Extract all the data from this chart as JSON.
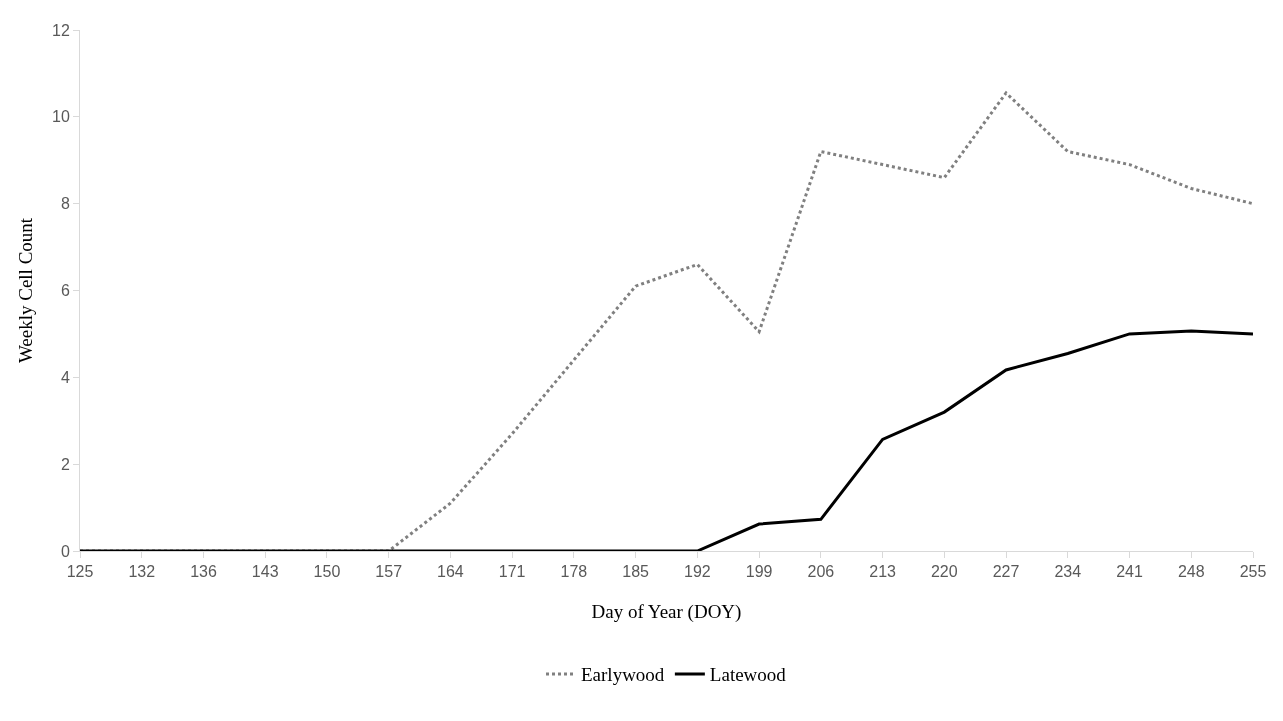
{
  "chart_data": {
    "type": "line",
    "xlabel": "Day of Year (DOY)",
    "ylabel": "Weekly Cell Count",
    "categories": [
      "125",
      "132",
      "136",
      "143",
      "150",
      "157",
      "164",
      "171",
      "178",
      "185",
      "192",
      "199",
      "206",
      "213",
      "220",
      "227",
      "234",
      "241",
      "248",
      "255"
    ],
    "series": [
      {
        "name": "Earlywood",
        "color": "#808080",
        "line_style": "dotted",
        "values": [
          0,
          0,
          0,
          0,
          0,
          0,
          1.1,
          2.7,
          4.4,
          6.1,
          6.6,
          5.05,
          9.2,
          8.9,
          8.6,
          10.55,
          9.2,
          8.9,
          8.35,
          8.0
        ]
      },
      {
        "name": "Latewood",
        "color": "#000000",
        "line_style": "solid",
        "values": [
          0,
          0,
          0,
          0,
          0,
          0,
          0,
          0,
          0,
          0,
          0,
          0.62,
          0.73,
          2.57,
          3.2,
          4.17,
          4.55,
          5.0,
          5.07,
          5.0
        ]
      }
    ],
    "ylim": [
      0,
      12
    ],
    "yticks": [
      0,
      2,
      4,
      6,
      8,
      10,
      12
    ],
    "grid": false,
    "legend": "bottom",
    "marker": "none"
  }
}
